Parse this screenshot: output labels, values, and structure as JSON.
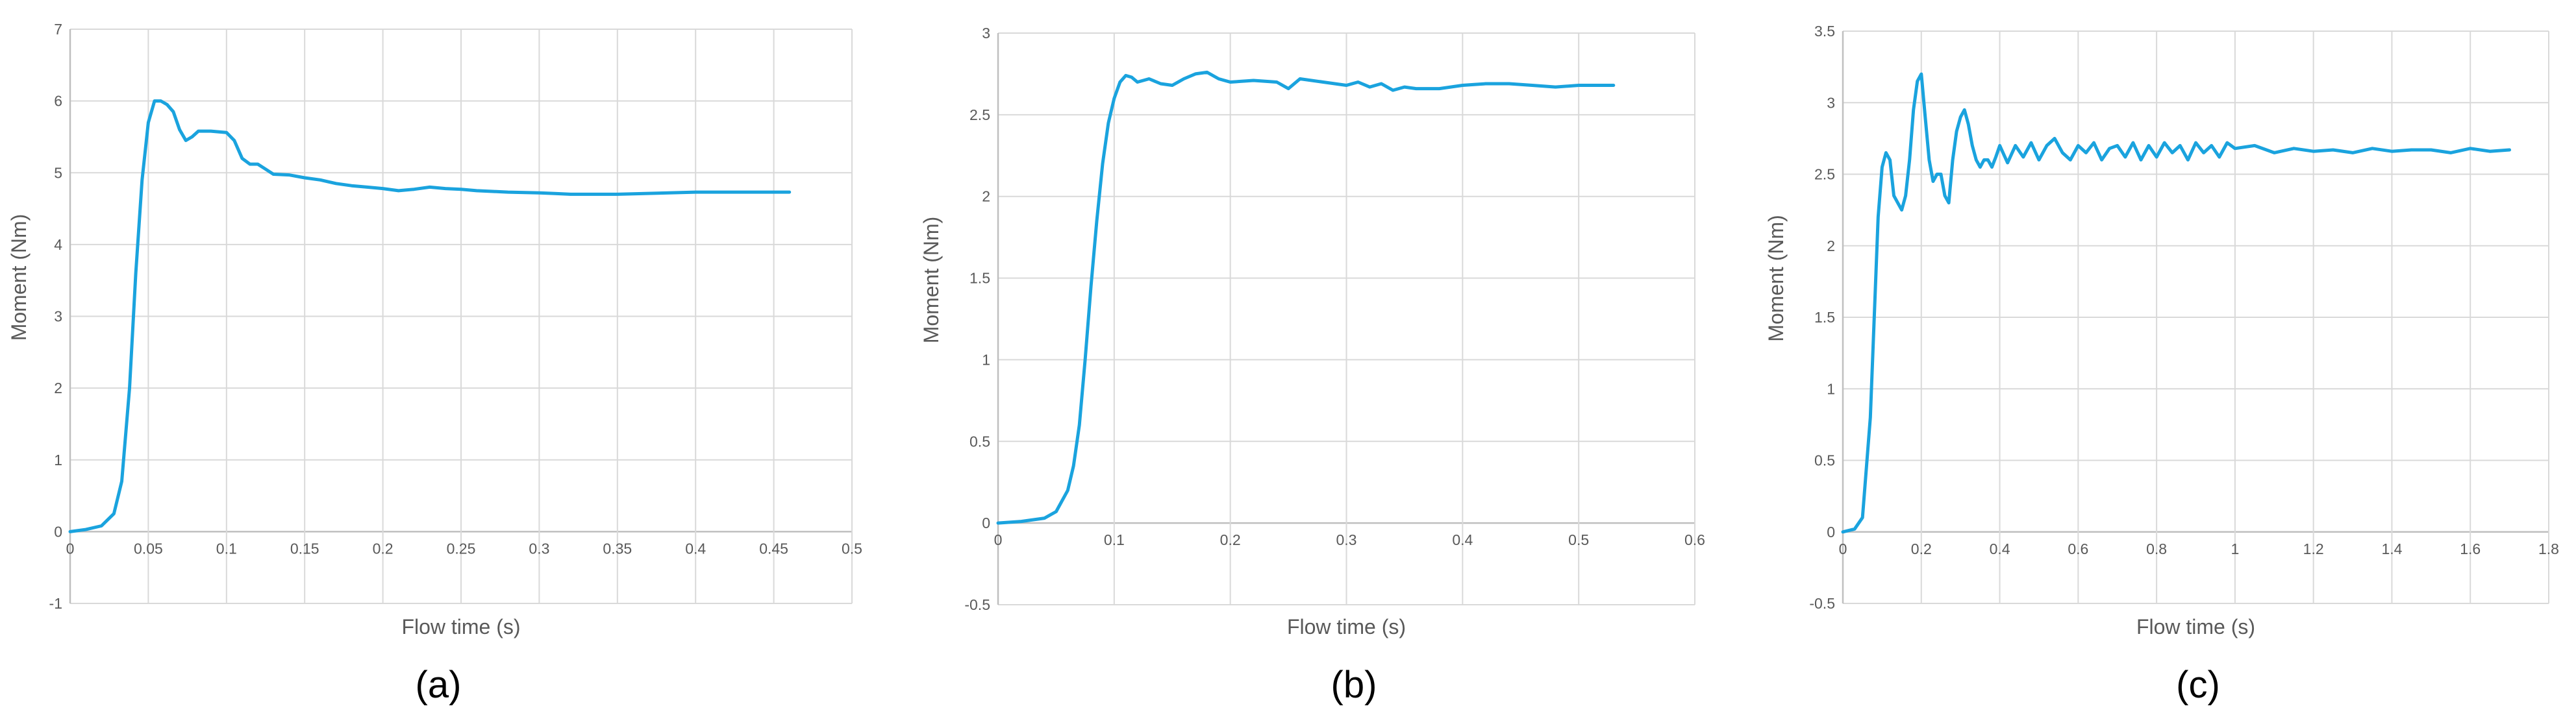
{
  "colors": {
    "series": "#1aa3de",
    "grid": "#d9d9d9",
    "text": "#595959"
  },
  "chart_data": [
    {
      "type": "line",
      "panel_label": "(a)",
      "xlabel": "Flow time (s)",
      "ylabel": "Moment (Nm)",
      "xlim": [
        0,
        0.5
      ],
      "ylim": [
        -1,
        7
      ],
      "xticks": [
        0,
        0.05,
        0.1,
        0.15,
        0.2,
        0.25,
        0.3,
        0.35,
        0.4,
        0.45,
        0.5
      ],
      "yticks": [
        -1,
        0,
        1,
        2,
        3,
        4,
        5,
        6,
        7
      ],
      "xtick_labels": [
        "0",
        "0.05",
        "0.1",
        "0.15",
        "0.2",
        "0.25",
        "0.3",
        "0.35",
        "0.4",
        "0.45",
        "0.5"
      ],
      "ytick_labels": [
        "-1",
        "0",
        "1",
        "2",
        "3",
        "4",
        "5",
        "6",
        "7"
      ],
      "grid": true,
      "series": [
        {
          "x": [
            0,
            0.01,
            0.02,
            0.028,
            0.033,
            0.038,
            0.042,
            0.046,
            0.05,
            0.054,
            0.058,
            0.062,
            0.066,
            0.07,
            0.074,
            0.078,
            0.082,
            0.09,
            0.1,
            0.105,
            0.11,
            0.115,
            0.12,
            0.125,
            0.13,
            0.14,
            0.15,
            0.16,
            0.17,
            0.18,
            0.19,
            0.2,
            0.21,
            0.22,
            0.23,
            0.24,
            0.25,
            0.26,
            0.27,
            0.28,
            0.3,
            0.31,
            0.32,
            0.35,
            0.4,
            0.46
          ],
          "y": [
            0,
            0.03,
            0.08,
            0.25,
            0.7,
            2.0,
            3.6,
            4.9,
            5.7,
            6.0,
            6.0,
            5.95,
            5.85,
            5.6,
            5.45,
            5.5,
            5.58,
            5.58,
            5.56,
            5.45,
            5.2,
            5.12,
            5.12,
            5.05,
            4.98,
            4.97,
            4.93,
            4.9,
            4.85,
            4.82,
            4.8,
            4.78,
            4.75,
            4.77,
            4.8,
            4.78,
            4.77,
            4.75,
            4.74,
            4.73,
            4.72,
            4.71,
            4.7,
            4.7,
            4.73,
            4.73
          ]
        }
      ]
    },
    {
      "type": "line",
      "panel_label": "(b)",
      "xlabel": "Flow time (s)",
      "ylabel": "Moment (Nm)",
      "xlim": [
        0,
        0.6
      ],
      "ylim": [
        -0.5,
        3
      ],
      "xticks": [
        0,
        0.1,
        0.2,
        0.3,
        0.4,
        0.5,
        0.6
      ],
      "yticks": [
        -0.5,
        0,
        0.5,
        1,
        1.5,
        2,
        2.5,
        3
      ],
      "xtick_labels": [
        "0",
        "0.1",
        "0.2",
        "0.3",
        "0.4",
        "0.5",
        "0.6"
      ],
      "ytick_labels": [
        "-0.5",
        "0",
        "0.5",
        "1",
        "1.5",
        "2",
        "2.5",
        "3"
      ],
      "grid": true,
      "series": [
        {
          "x": [
            0,
            0.02,
            0.04,
            0.05,
            0.06,
            0.065,
            0.07,
            0.075,
            0.08,
            0.085,
            0.09,
            0.095,
            0.1,
            0.105,
            0.11,
            0.115,
            0.12,
            0.13,
            0.14,
            0.15,
            0.16,
            0.17,
            0.18,
            0.19,
            0.2,
            0.22,
            0.24,
            0.25,
            0.26,
            0.28,
            0.3,
            0.31,
            0.32,
            0.33,
            0.34,
            0.35,
            0.36,
            0.38,
            0.4,
            0.42,
            0.44,
            0.46,
            0.48,
            0.5,
            0.53
          ],
          "y": [
            0,
            0.01,
            0.03,
            0.07,
            0.2,
            0.35,
            0.6,
            1.0,
            1.45,
            1.85,
            2.2,
            2.45,
            2.6,
            2.7,
            2.74,
            2.73,
            2.7,
            2.72,
            2.69,
            2.68,
            2.72,
            2.75,
            2.76,
            2.72,
            2.7,
            2.71,
            2.7,
            2.66,
            2.72,
            2.7,
            2.68,
            2.7,
            2.67,
            2.69,
            2.65,
            2.67,
            2.66,
            2.66,
            2.68,
            2.69,
            2.69,
            2.68,
            2.67,
            2.68,
            2.68
          ]
        }
      ]
    },
    {
      "type": "line",
      "panel_label": "(c)",
      "xlabel": "Flow time (s)",
      "ylabel": "Moment (Nm)",
      "xlim": [
        0,
        1.8
      ],
      "ylim": [
        -0.5,
        3.5
      ],
      "xticks": [
        0,
        0.2,
        0.4,
        0.6,
        0.8,
        1,
        1.2,
        1.4,
        1.6,
        1.8
      ],
      "yticks": [
        -0.5,
        0,
        0.5,
        1,
        1.5,
        2,
        2.5,
        3,
        3.5
      ],
      "xtick_labels": [
        "0",
        "0.2",
        "0.4",
        "0.6",
        "0.8",
        "1",
        "1.2",
        "1.4",
        "1.6",
        "1.8"
      ],
      "ytick_labels": [
        "-0.5",
        "0",
        "0.5",
        "1",
        "1.5",
        "2",
        "2.5",
        "3",
        "3.5"
      ],
      "grid": true,
      "series": [
        {
          "x": [
            0,
            0.03,
            0.05,
            0.07,
            0.08,
            0.09,
            0.1,
            0.11,
            0.12,
            0.13,
            0.14,
            0.15,
            0.16,
            0.17,
            0.18,
            0.19,
            0.2,
            0.21,
            0.22,
            0.23,
            0.24,
            0.25,
            0.26,
            0.27,
            0.28,
            0.29,
            0.3,
            0.31,
            0.32,
            0.33,
            0.34,
            0.35,
            0.36,
            0.37,
            0.38,
            0.39,
            0.4,
            0.42,
            0.44,
            0.46,
            0.48,
            0.5,
            0.52,
            0.54,
            0.56,
            0.58,
            0.6,
            0.62,
            0.64,
            0.66,
            0.68,
            0.7,
            0.72,
            0.74,
            0.76,
            0.78,
            0.8,
            0.82,
            0.84,
            0.86,
            0.88,
            0.9,
            0.92,
            0.94,
            0.96,
            0.98,
            1.0,
            1.05,
            1.1,
            1.15,
            1.2,
            1.25,
            1.3,
            1.35,
            1.4,
            1.45,
            1.5,
            1.55,
            1.6,
            1.65,
            1.7
          ],
          "y": [
            0,
            0.02,
            0.1,
            0.8,
            1.5,
            2.2,
            2.55,
            2.65,
            2.6,
            2.35,
            2.3,
            2.25,
            2.35,
            2.6,
            2.95,
            3.15,
            3.2,
            2.9,
            2.6,
            2.45,
            2.5,
            2.5,
            2.35,
            2.3,
            2.6,
            2.8,
            2.9,
            2.95,
            2.85,
            2.7,
            2.6,
            2.55,
            2.6,
            2.6,
            2.55,
            2.62,
            2.7,
            2.58,
            2.7,
            2.62,
            2.72,
            2.6,
            2.7,
            2.75,
            2.65,
            2.6,
            2.7,
            2.65,
            2.72,
            2.6,
            2.68,
            2.7,
            2.62,
            2.72,
            2.6,
            2.7,
            2.62,
            2.72,
            2.65,
            2.7,
            2.6,
            2.72,
            2.65,
            2.7,
            2.62,
            2.72,
            2.68,
            2.7,
            2.65,
            2.68,
            2.66,
            2.67,
            2.65,
            2.68,
            2.66,
            2.67,
            2.67,
            2.65,
            2.68,
            2.66,
            2.67
          ]
        }
      ]
    }
  ]
}
